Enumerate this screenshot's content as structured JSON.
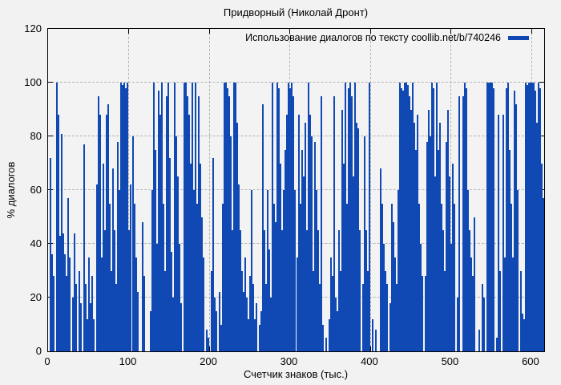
{
  "title": "Придворный (Николай Дронт)",
  "legend": {
    "label": "Использование диалогов по тексту coollib.net/b/740246",
    "swatch_color": "#1149b4"
  },
  "colors": {
    "background": "#f2f2f2",
    "plot_background": "#f3f3f3",
    "bar": "#1149b4",
    "grid": "#b4b4b4",
    "border": "#000000",
    "text": "#000000"
  },
  "chart_data": {
    "type": "bar",
    "title": "Придворный (Николай Дронт)",
    "legend": "Использование диалогов по тексту coollib.net/b/740246",
    "xlabel": "Счетчик знаков (тыс.)",
    "ylabel": "% диалогов",
    "xlim": [
      0,
      616
    ],
    "ylim": [
      0,
      120
    ],
    "xticks": [
      0,
      100,
      200,
      300,
      400,
      500,
      600
    ],
    "yticks": [
      0,
      20,
      40,
      60,
      80,
      100,
      120
    ],
    "grid": true,
    "legend_position": "top-right",
    "points": [
      [
        2,
        72
      ],
      [
        4,
        36
      ],
      [
        6,
        28
      ],
      [
        10,
        100
      ],
      [
        12,
        88
      ],
      [
        14,
        43
      ],
      [
        16,
        81
      ],
      [
        18,
        44
      ],
      [
        20,
        36
      ],
      [
        22,
        28
      ],
      [
        24,
        57
      ],
      [
        26,
        35
      ],
      [
        30,
        20
      ],
      [
        32,
        44
      ],
      [
        34,
        25
      ],
      [
        38,
        30
      ],
      [
        40,
        18
      ],
      [
        44,
        77
      ],
      [
        46,
        25
      ],
      [
        48,
        12
      ],
      [
        50,
        35
      ],
      [
        52,
        18
      ],
      [
        54,
        28
      ],
      [
        56,
        12
      ],
      [
        60,
        62
      ],
      [
        62,
        95
      ],
      [
        64,
        88
      ],
      [
        66,
        35
      ],
      [
        68,
        70
      ],
      [
        70,
        45
      ],
      [
        72,
        88
      ],
      [
        74,
        92
      ],
      [
        76,
        55
      ],
      [
        78,
        30
      ],
      [
        80,
        68
      ],
      [
        82,
        45
      ],
      [
        84,
        25
      ],
      [
        86,
        78
      ],
      [
        88,
        60
      ],
      [
        90,
        100
      ],
      [
        92,
        99
      ],
      [
        94,
        100
      ],
      [
        96,
        98
      ],
      [
        98,
        100
      ],
      [
        100,
        45
      ],
      [
        102,
        62
      ],
      [
        104,
        80
      ],
      [
        106,
        55
      ],
      [
        108,
        35
      ],
      [
        110,
        22
      ],
      [
        116,
        48
      ],
      [
        118,
        28
      ],
      [
        126,
        15
      ],
      [
        128,
        60
      ],
      [
        130,
        100
      ],
      [
        132,
        75
      ],
      [
        134,
        40
      ],
      [
        136,
        97
      ],
      [
        138,
        88
      ],
      [
        140,
        100
      ],
      [
        142,
        55
      ],
      [
        144,
        30
      ],
      [
        146,
        95
      ],
      [
        148,
        100
      ],
      [
        150,
        72
      ],
      [
        152,
        37
      ],
      [
        154,
        20
      ],
      [
        156,
        100
      ],
      [
        158,
        80
      ],
      [
        160,
        65
      ],
      [
        162,
        40
      ],
      [
        164,
        18
      ],
      [
        168,
        100
      ],
      [
        170,
        100
      ],
      [
        172,
        95
      ],
      [
        174,
        88
      ],
      [
        176,
        70
      ],
      [
        178,
        100
      ],
      [
        180,
        60
      ],
      [
        182,
        100
      ],
      [
        184,
        55
      ],
      [
        186,
        95
      ],
      [
        188,
        70
      ],
      [
        190,
        50
      ],
      [
        192,
        35
      ],
      [
        196,
        8
      ],
      [
        198,
        5
      ],
      [
        202,
        30
      ],
      [
        204,
        72
      ],
      [
        206,
        20
      ],
      [
        208,
        15
      ],
      [
        212,
        22
      ],
      [
        214,
        10
      ],
      [
        216,
        55
      ],
      [
        218,
        100
      ],
      [
        220,
        100
      ],
      [
        222,
        98
      ],
      [
        224,
        95
      ],
      [
        226,
        80
      ],
      [
        228,
        45
      ],
      [
        230,
        100
      ],
      [
        232,
        100
      ],
      [
        234,
        85
      ],
      [
        236,
        62
      ],
      [
        238,
        45
      ],
      [
        240,
        30
      ],
      [
        242,
        22
      ],
      [
        244,
        35
      ],
      [
        246,
        20
      ],
      [
        248,
        12
      ],
      [
        250,
        28
      ],
      [
        252,
        60
      ],
      [
        254,
        25
      ],
      [
        256,
        12
      ],
      [
        258,
        18
      ],
      [
        262,
        10
      ],
      [
        264,
        15
      ],
      [
        266,
        92
      ],
      [
        268,
        45
      ],
      [
        270,
        25
      ],
      [
        272,
        60
      ],
      [
        274,
        38
      ],
      [
        276,
        20
      ],
      [
        278,
        100
      ],
      [
        280,
        55
      ],
      [
        282,
        48
      ],
      [
        284,
        100
      ],
      [
        286,
        98
      ],
      [
        288,
        70
      ],
      [
        290,
        45
      ],
      [
        292,
        60
      ],
      [
        294,
        75
      ],
      [
        296,
        88
      ],
      [
        298,
        100
      ],
      [
        300,
        98
      ],
      [
        302,
        100
      ],
      [
        304,
        95
      ],
      [
        306,
        60
      ],
      [
        308,
        35
      ],
      [
        310,
        88
      ],
      [
        312,
        55
      ],
      [
        314,
        75
      ],
      [
        316,
        65
      ],
      [
        318,
        85
      ],
      [
        320,
        45
      ],
      [
        322,
        100
      ],
      [
        324,
        88
      ],
      [
        326,
        80
      ],
      [
        328,
        30
      ],
      [
        330,
        78
      ],
      [
        332,
        60
      ],
      [
        334,
        45
      ],
      [
        336,
        25
      ],
      [
        338,
        95
      ],
      [
        340,
        10
      ],
      [
        344,
        5
      ],
      [
        348,
        12
      ],
      [
        350,
        35
      ],
      [
        352,
        28
      ],
      [
        354,
        95
      ],
      [
        356,
        20
      ],
      [
        358,
        15
      ],
      [
        360,
        45
      ],
      [
        362,
        30
      ],
      [
        364,
        90
      ],
      [
        366,
        70
      ],
      [
        368,
        100
      ],
      [
        370,
        55
      ],
      [
        372,
        98
      ],
      [
        374,
        100
      ],
      [
        376,
        95
      ],
      [
        378,
        65
      ],
      [
        380,
        100
      ],
      [
        382,
        85
      ],
      [
        384,
        83
      ],
      [
        386,
        45
      ],
      [
        390,
        25
      ],
      [
        392,
        80
      ],
      [
        394,
        45
      ],
      [
        396,
        30
      ],
      [
        398,
        100
      ],
      [
        402,
        12
      ],
      [
        406,
        8
      ],
      [
        412,
        68
      ],
      [
        414,
        55
      ],
      [
        416,
        40
      ],
      [
        418,
        30
      ],
      [
        420,
        25
      ],
      [
        424,
        18
      ],
      [
        426,
        55
      ],
      [
        428,
        48
      ],
      [
        430,
        35
      ],
      [
        432,
        25
      ],
      [
        434,
        60
      ],
      [
        436,
        100
      ],
      [
        438,
        98
      ],
      [
        440,
        97
      ],
      [
        442,
        100
      ],
      [
        444,
        100
      ],
      [
        446,
        99
      ],
      [
        448,
        95
      ],
      [
        450,
        90
      ],
      [
        452,
        100
      ],
      [
        454,
        85
      ],
      [
        456,
        75
      ],
      [
        458,
        88
      ],
      [
        460,
        55
      ],
      [
        462,
        40
      ],
      [
        464,
        28
      ],
      [
        468,
        28
      ],
      [
        470,
        78
      ],
      [
        472,
        90
      ],
      [
        474,
        80
      ],
      [
        476,
        100
      ],
      [
        478,
        98
      ],
      [
        480,
        65
      ],
      [
        482,
        100
      ],
      [
        484,
        75
      ],
      [
        486,
        85
      ],
      [
        488,
        55
      ],
      [
        490,
        45
      ],
      [
        492,
        30
      ],
      [
        494,
        78
      ],
      [
        496,
        90
      ],
      [
        498,
        65
      ],
      [
        500,
        40
      ],
      [
        502,
        70
      ],
      [
        504,
        55
      ],
      [
        508,
        20
      ],
      [
        510,
        95
      ],
      [
        514,
        95
      ],
      [
        516,
        100
      ],
      [
        518,
        98
      ],
      [
        520,
        60
      ],
      [
        522,
        45
      ],
      [
        524,
        35
      ],
      [
        526,
        28
      ],
      [
        528,
        50
      ],
      [
        534,
        8
      ],
      [
        538,
        25
      ],
      [
        540,
        20
      ],
      [
        544,
        100
      ],
      [
        546,
        100
      ],
      [
        548,
        100
      ],
      [
        550,
        100
      ],
      [
        552,
        98
      ],
      [
        556,
        5
      ],
      [
        558,
        88
      ],
      [
        560,
        30
      ],
      [
        564,
        88
      ],
      [
        566,
        35
      ],
      [
        568,
        98
      ],
      [
        570,
        100
      ],
      [
        572,
        75
      ],
      [
        574,
        55
      ],
      [
        576,
        35
      ],
      [
        578,
        97
      ],
      [
        580,
        92
      ],
      [
        582,
        60
      ],
      [
        586,
        30
      ],
      [
        588,
        14
      ],
      [
        590,
        12
      ],
      [
        592,
        100
      ],
      [
        594,
        99
      ],
      [
        596,
        100
      ],
      [
        598,
        100
      ],
      [
        600,
        100
      ],
      [
        602,
        100
      ],
      [
        604,
        97
      ],
      [
        606,
        85
      ],
      [
        608,
        100
      ],
      [
        610,
        98
      ],
      [
        612,
        70
      ],
      [
        614,
        57
      ]
    ]
  }
}
